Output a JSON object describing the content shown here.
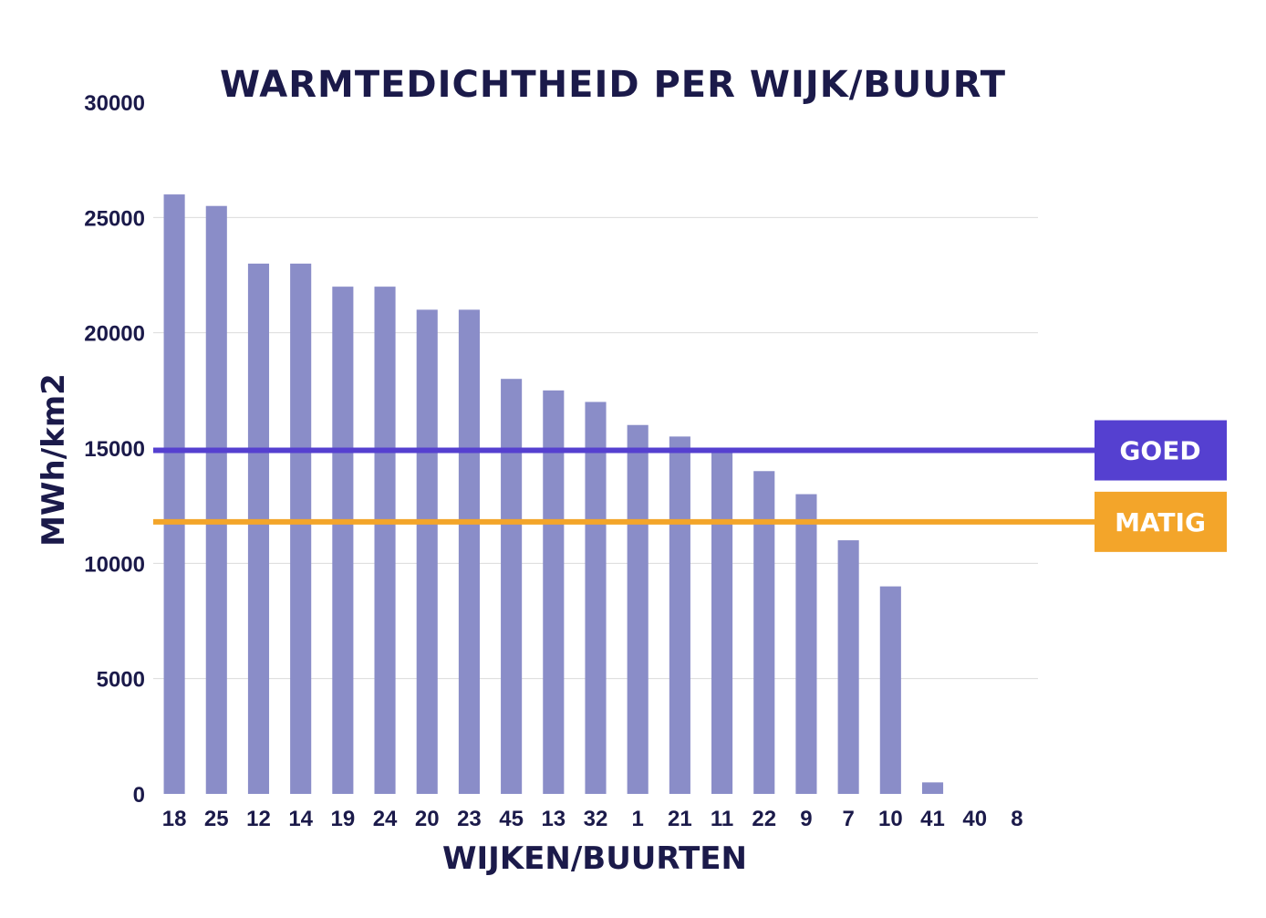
{
  "chart_data": {
    "type": "bar",
    "title": "WARMTEDICHTHEID PER WIJK/BUURT",
    "xlabel": "WIJKEN/BUURTEN",
    "ylabel": "MWh/km2",
    "ylim": [
      0,
      30000
    ],
    "yticks": [
      0,
      5000,
      10000,
      15000,
      20000,
      25000,
      30000
    ],
    "grid": true,
    "categories": [
      "18",
      "25",
      "12",
      "14",
      "19",
      "24",
      "20",
      "23",
      "45",
      "13",
      "32",
      "1",
      "21",
      "11",
      "22",
      "9",
      "7",
      "10",
      "41",
      "40",
      "8"
    ],
    "values": [
      26000,
      25500,
      23000,
      23000,
      22000,
      22000,
      21000,
      21000,
      18000,
      17500,
      17000,
      16000,
      15500,
      15000,
      14000,
      13000,
      11000,
      9000,
      500,
      0,
      0
    ],
    "bar_color": "#8a8dc8",
    "reference_lines": [
      {
        "label": "GOED",
        "value": 14900,
        "color": "#5540d0"
      },
      {
        "label": "MATIG",
        "value": 11800,
        "color": "#f3a52a"
      }
    ]
  }
}
